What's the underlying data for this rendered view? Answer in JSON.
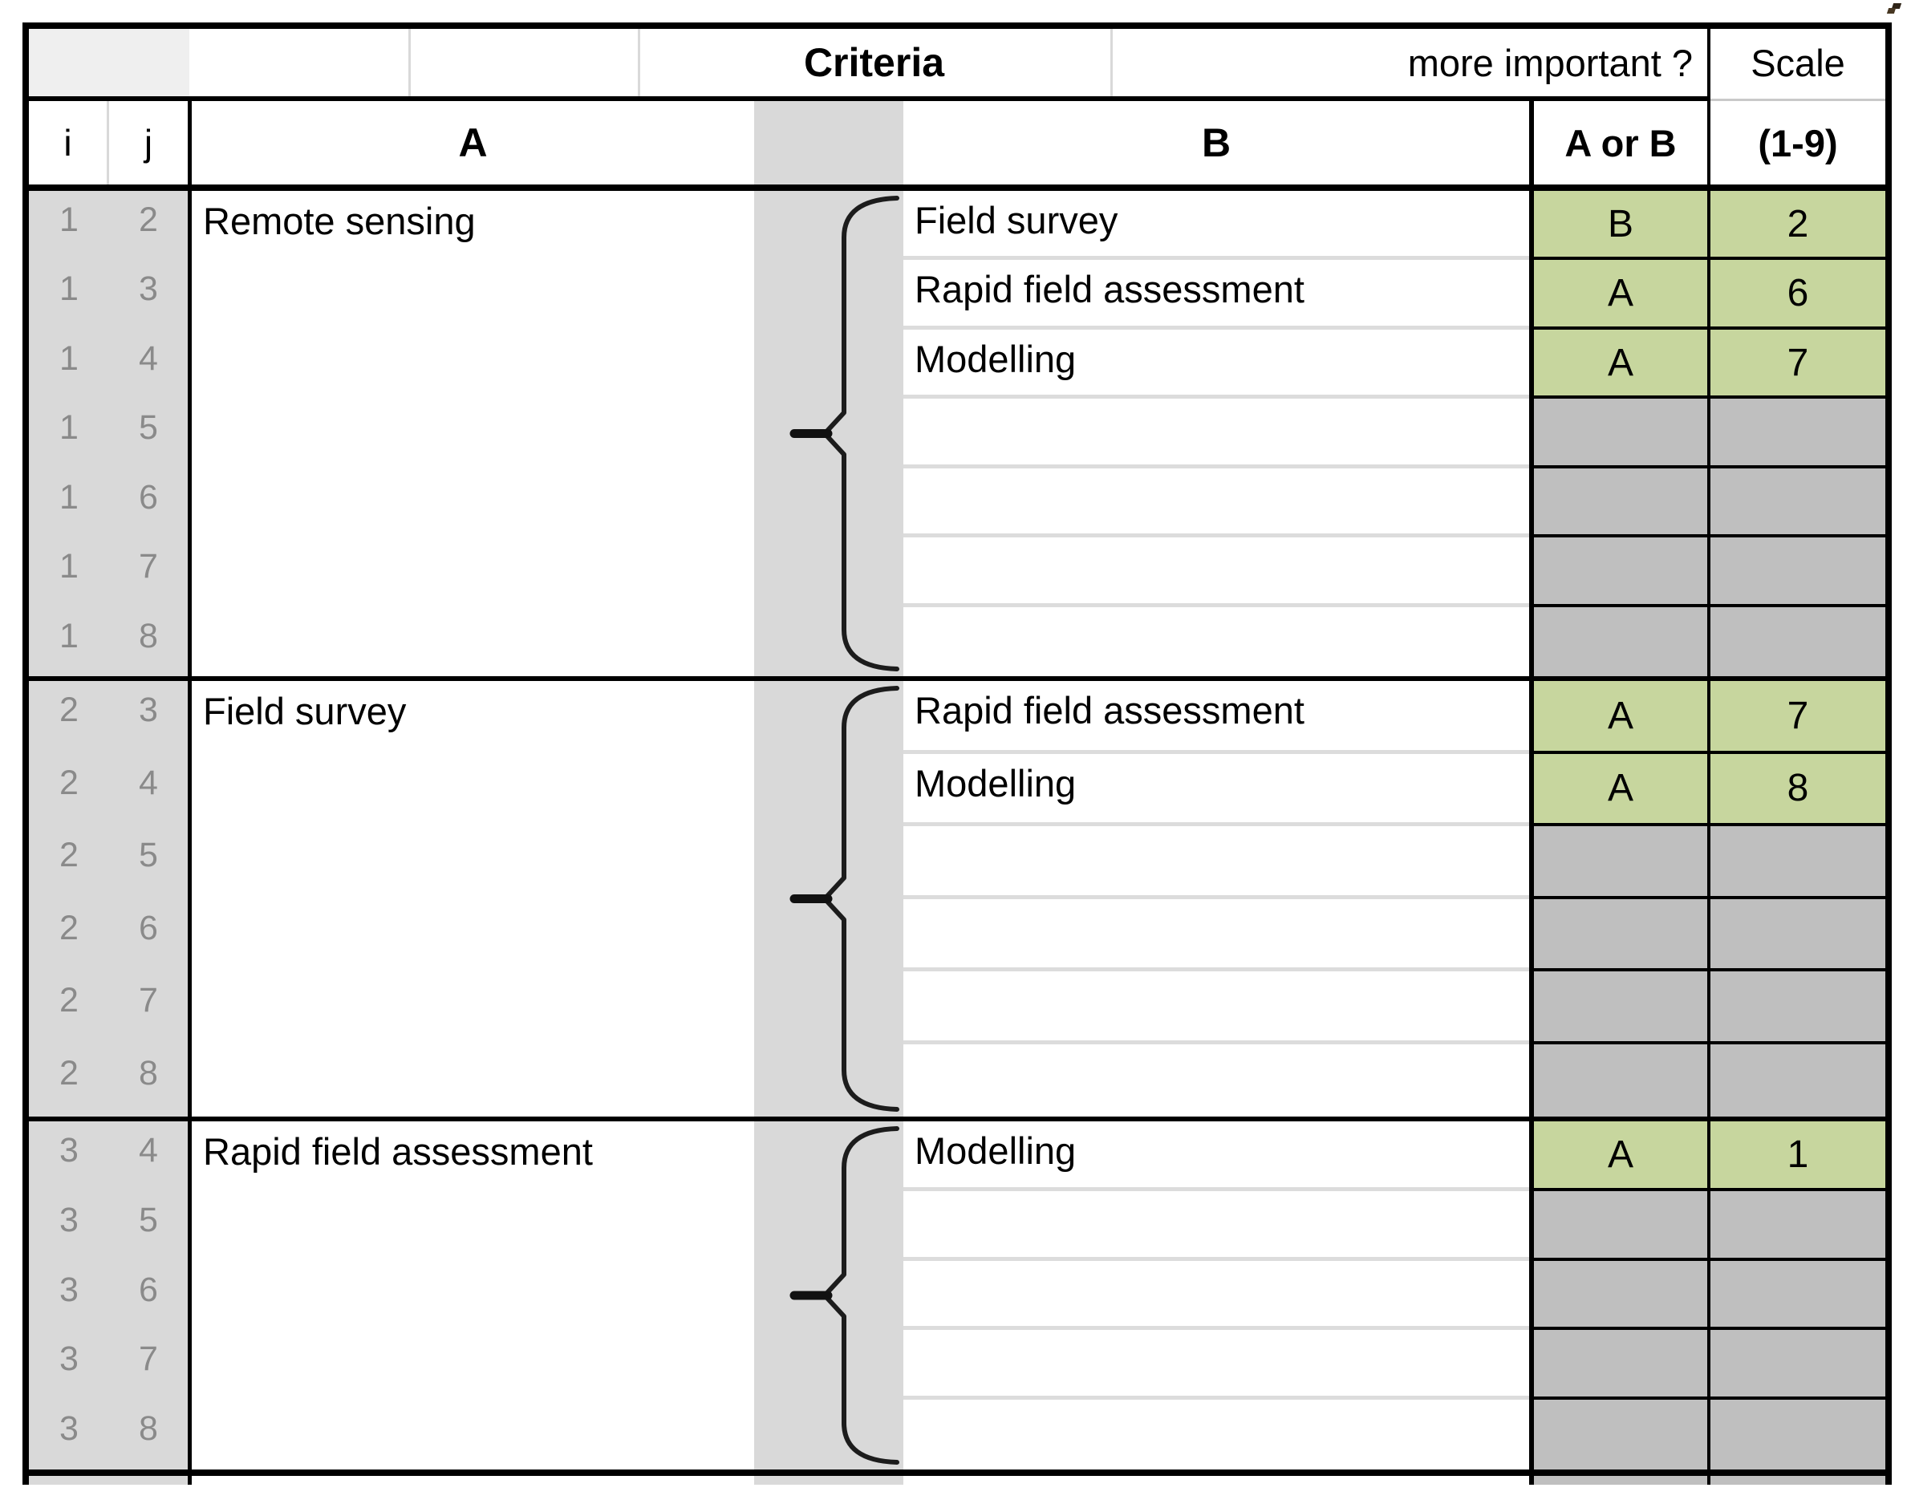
{
  "header": {
    "criteria_label": "Criteria",
    "more_important_label": "more important ?",
    "scale_top_label": "Scale",
    "col_i": "i",
    "col_j": "j",
    "col_a": "A",
    "col_b": "B",
    "col_aorb": "A or B",
    "col_scale_range": "(1-9)"
  },
  "colors": {
    "green_filled_cell": "#c7d69e",
    "gray_empty_cell": "#bfbfbf",
    "gray_band": "#d9d9d9",
    "ij_number_text": "#8a8a8a"
  },
  "groups": [
    {
      "a_label": "Remote sensing",
      "rows": [
        {
          "i": "1",
          "j": "2",
          "b": "Field survey",
          "winner": "B",
          "scale": "2",
          "filled": true
        },
        {
          "i": "1",
          "j": "3",
          "b": "Rapid field assessment",
          "winner": "A",
          "scale": "6",
          "filled": true
        },
        {
          "i": "1",
          "j": "4",
          "b": "Modelling",
          "winner": "A",
          "scale": "7",
          "filled": true
        },
        {
          "i": "1",
          "j": "5",
          "b": "",
          "winner": "",
          "scale": "",
          "filled": false
        },
        {
          "i": "1",
          "j": "6",
          "b": "",
          "winner": "",
          "scale": "",
          "filled": false
        },
        {
          "i": "1",
          "j": "7",
          "b": "",
          "winner": "",
          "scale": "",
          "filled": false
        },
        {
          "i": "1",
          "j": "8",
          "b": "",
          "winner": "",
          "scale": "",
          "filled": false
        }
      ]
    },
    {
      "a_label": "Field survey",
      "rows": [
        {
          "i": "2",
          "j": "3",
          "b": "Rapid field assessment",
          "winner": "A",
          "scale": "7",
          "filled": true
        },
        {
          "i": "2",
          "j": "4",
          "b": "Modelling",
          "winner": "A",
          "scale": "8",
          "filled": true
        },
        {
          "i": "2",
          "j": "5",
          "b": "",
          "winner": "",
          "scale": "",
          "filled": false
        },
        {
          "i": "2",
          "j": "6",
          "b": "",
          "winner": "",
          "scale": "",
          "filled": false
        },
        {
          "i": "2",
          "j": "7",
          "b": "",
          "winner": "",
          "scale": "",
          "filled": false
        },
        {
          "i": "2",
          "j": "8",
          "b": "",
          "winner": "",
          "scale": "",
          "filled": false
        }
      ]
    },
    {
      "a_label": "Rapid field assessment",
      "rows": [
        {
          "i": "3",
          "j": "4",
          "b": "Modelling",
          "winner": "A",
          "scale": "1",
          "filled": true
        },
        {
          "i": "3",
          "j": "5",
          "b": "",
          "winner": "",
          "scale": "",
          "filled": false
        },
        {
          "i": "3",
          "j": "6",
          "b": "",
          "winner": "",
          "scale": "",
          "filled": false
        },
        {
          "i": "3",
          "j": "7",
          "b": "",
          "winner": "",
          "scale": "",
          "filled": false
        },
        {
          "i": "3",
          "j": "8",
          "b": "",
          "winner": "",
          "scale": "",
          "filled": false
        }
      ]
    }
  ]
}
